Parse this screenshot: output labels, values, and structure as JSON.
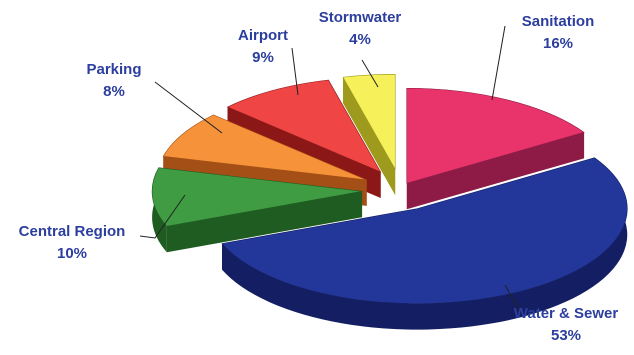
{
  "chart_data": {
    "type": "pie",
    "style": "3d-exploded",
    "title": "",
    "slices": [
      {
        "label": "Sanitation",
        "value": 16,
        "value_label": "16%",
        "color": "#e8336b",
        "side_color": "#8e1b46"
      },
      {
        "label": "Water & Sewer",
        "value": 53,
        "value_label": "53%",
        "color": "#23379a",
        "side_color": "#141f63"
      },
      {
        "label": "Central Region",
        "value": 10,
        "value_label": "10%",
        "color": "#3f9c43",
        "side_color": "#1f5c22"
      },
      {
        "label": "Parking",
        "value": 8,
        "value_label": "8%",
        "color": "#f6933a",
        "side_color": "#a44f15"
      },
      {
        "label": "Airport",
        "value": 9,
        "value_label": "9%",
        "color": "#f04545",
        "side_color": "#8b1717"
      },
      {
        "label": "Stormwater",
        "value": 4,
        "value_label": "4%",
        "color": "#f6f05a",
        "side_color": "#9e9a1d"
      }
    ],
    "label_color": "#2c3e9e",
    "legend": "none"
  }
}
